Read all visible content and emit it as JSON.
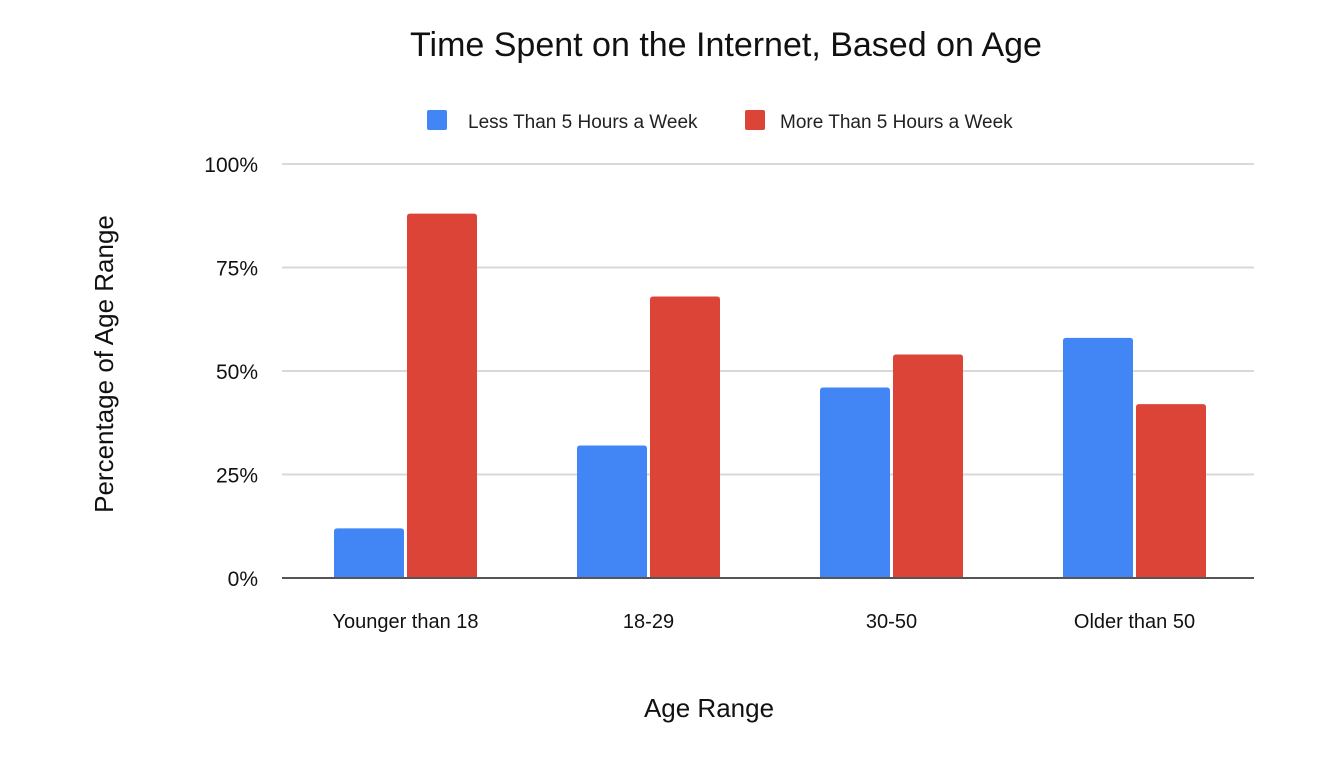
{
  "chart_data": {
    "type": "bar",
    "title": "Time Spent on the Internet, Based on Age",
    "xlabel": "Age Range",
    "ylabel": "Percentage of Age Range",
    "categories": [
      "Younger than 18",
      "18-29",
      "30-50",
      "Older than 50"
    ],
    "series": [
      {
        "name": "Less Than 5 Hours a Week",
        "color": "#4285f4",
        "values": [
          12,
          32,
          46,
          58
        ]
      },
      {
        "name": "More Than 5 Hours a Week",
        "color": "#db4437",
        "values": [
          88,
          68,
          54,
          42
        ]
      }
    ],
    "ylim": [
      0,
      100
    ],
    "yticks": [
      0,
      25,
      50,
      75,
      100
    ],
    "ytick_labels": [
      "0%",
      "25%",
      "50%",
      "75%",
      "100%"
    ],
    "grid": true,
    "legend_position": "top-center"
  }
}
